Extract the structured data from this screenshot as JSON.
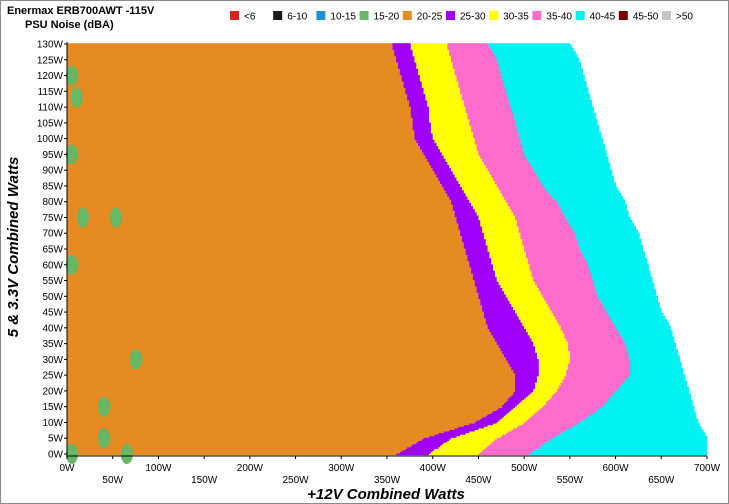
{
  "title": "Enermax ERB700AWT -115V",
  "subtitle": "PSU Noise (dBA)",
  "legend": [
    {
      "label": "<6",
      "color": "#e02020"
    },
    {
      "label": "6-10",
      "color": "#1a1a1a"
    },
    {
      "label": "10-15",
      "color": "#1e90d6"
    },
    {
      "label": "15-20",
      "color": "#66b866"
    },
    {
      "label": "20-25",
      "color": "#e68a22"
    },
    {
      "label": "25-30",
      "color": "#a000ff"
    },
    {
      "label": "30-35",
      "color": "#ffff00"
    },
    {
      "label": "35-40",
      "color": "#ff6ccc"
    },
    {
      "label": "40-45",
      "color": "#00f2f2"
    },
    {
      "label": "45-50",
      "color": "#7a0000"
    },
    {
      "label": ">50",
      "color": "#c6c6c6"
    }
  ],
  "chart_data": {
    "type": "heatmap",
    "title": "Enermax ERB700AWT -115V",
    "subtitle": "PSU Noise (dBA)",
    "xlabel": "+12V Combined Watts",
    "ylabel": "5 & 3.3V Combined Watts",
    "xlim": [
      0,
      700
    ],
    "ylim": [
      0,
      130
    ],
    "x_ticks": [
      "0W",
      "50W",
      "100W",
      "150W",
      "200W",
      "250W",
      "300W",
      "350W",
      "400W",
      "450W",
      "500W",
      "550W",
      "600W",
      "650W",
      "700W"
    ],
    "y_ticks": [
      "0W",
      "5W",
      "10W",
      "15W",
      "20W",
      "25W",
      "30W",
      "35W",
      "40W",
      "45W",
      "50W",
      "55W",
      "60W",
      "65W",
      "70W",
      "75W",
      "80W",
      "85W",
      "90W",
      "95W",
      "100W",
      "105W",
      "110W",
      "115W",
      "120W",
      "125W",
      "130W"
    ],
    "legend_position": "top",
    "zone_boundaries": {
      "y": [
        0,
        5,
        10,
        15,
        20,
        25,
        30,
        35,
        40,
        45,
        50,
        55,
        60,
        65,
        70,
        75,
        80,
        85,
        90,
        95,
        100,
        105,
        110,
        115,
        120,
        125,
        130
      ],
      "end_20_25_dBA": [
        360,
        390,
        445,
        475,
        490,
        490,
        480,
        470,
        460,
        455,
        450,
        445,
        440,
        435,
        430,
        425,
        420,
        410,
        400,
        390,
        380,
        378,
        375,
        370,
        365,
        360,
        355
      ],
      "end_25_30_dBA": [
        395,
        420,
        470,
        490,
        510,
        515,
        515,
        510,
        500,
        490,
        480,
        470,
        465,
        460,
        455,
        450,
        440,
        430,
        420,
        410,
        400,
        397,
        395,
        390,
        385,
        380,
        375
      ],
      "end_30_35_dBA": [
        450,
        470,
        500,
        520,
        535,
        545,
        550,
        548,
        540,
        530,
        520,
        510,
        505,
        500,
        495,
        490,
        480,
        470,
        460,
        450,
        445,
        440,
        435,
        430,
        425,
        420,
        415
      ],
      "end_35_40_dBA": [
        505,
        530,
        560,
        585,
        600,
        615,
        615,
        610,
        600,
        590,
        580,
        575,
        570,
        560,
        555,
        545,
        535,
        520,
        510,
        500,
        495,
        490,
        485,
        480,
        475,
        470,
        460
      ],
      "end_40_45_dBA": [
        700,
        700,
        690,
        685,
        680,
        675,
        670,
        665,
        660,
        650,
        645,
        640,
        635,
        630,
        625,
        615,
        610,
        600,
        595,
        590,
        585,
        580,
        575,
        570,
        565,
        560,
        550
      ]
    },
    "spots_15_20_dBA": [
      {
        "x": 0,
        "y": 0
      },
      {
        "x": 35,
        "y": 5
      },
      {
        "x": 35,
        "y": 15
      },
      {
        "x": 60,
        "y": 0
      },
      {
        "x": 70,
        "y": 30
      },
      {
        "x": 12,
        "y": 75
      },
      {
        "x": 48,
        "y": 75
      },
      {
        "x": 0,
        "y": 60
      },
      {
        "x": 0,
        "y": 95
      },
      {
        "x": 5,
        "y": 113
      },
      {
        "x": 0,
        "y": 120
      }
    ]
  }
}
